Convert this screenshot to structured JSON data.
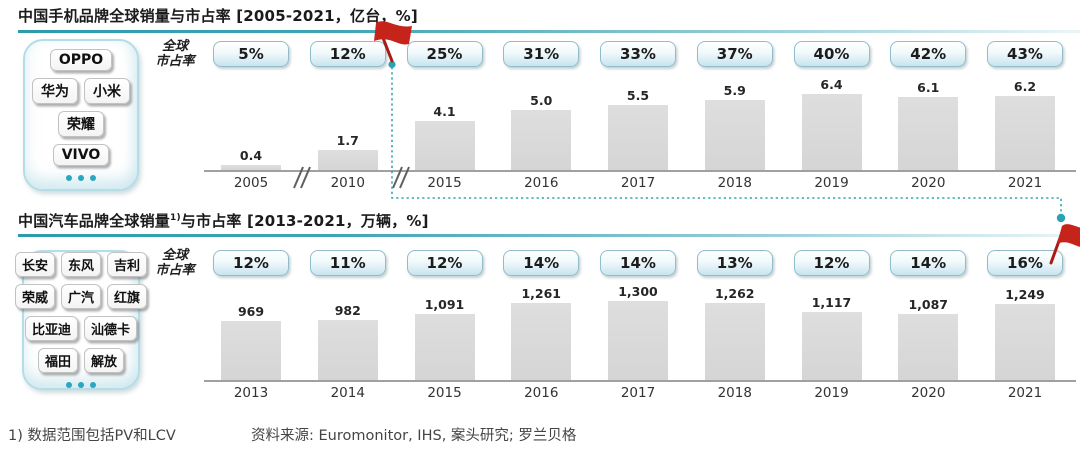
{
  "page": {
    "footnote": "1) 数据范围包括PV和LCV",
    "source": "资料来源: Euromonitor, IHS, 案头研究; 罗兰贝格"
  },
  "sections": [
    {
      "title_pre": "中国手机品牌全球销量与市占率 [2005-2021，亿台，%]",
      "title_sup": "",
      "title_post": "",
      "share_label_line1": "全球",
      "share_label_line2": "市占率"
    },
    {
      "title_pre": "中国汽车品牌全球销量",
      "title_sup": "1)",
      "title_post": "与市占率 [2013-2021，万辆，%]",
      "share_label_line1": "全球",
      "share_label_line2": "市占率"
    }
  ],
  "brand_panels": [
    {
      "rows": [
        [
          "OPPO"
        ],
        [
          "华为",
          "小米"
        ],
        [
          "荣耀"
        ],
        [
          "VIVO"
        ]
      ]
    },
    {
      "rows": [
        [
          "长安",
          "东风",
          "吉利"
        ],
        [
          "荣威",
          "广汽",
          "红旗"
        ],
        [
          "比亚迪",
          "汕德卡"
        ],
        [
          "福田",
          "解放"
        ]
      ]
    }
  ],
  "chart_data": [
    {
      "type": "bar",
      "title": "中国手机品牌全球销量与市占率 [2005-2021，亿台，%]",
      "categories": [
        "2005",
        "2010",
        "2015",
        "2016",
        "2017",
        "2018",
        "2019",
        "2020",
        "2021"
      ],
      "series": [
        {
          "name": "全球销量（亿台）",
          "values": [
            0.4,
            1.7,
            4.1,
            5.0,
            5.5,
            5.9,
            6.4,
            6.1,
            6.2
          ],
          "labels": [
            "0.4",
            "1.7",
            "4.1",
            "5.0",
            "5.5",
            "5.9",
            "6.4",
            "6.1",
            "6.2"
          ]
        },
        {
          "name": "全球市占率（%）",
          "values": [
            5,
            12,
            25,
            31,
            33,
            37,
            40,
            42,
            43
          ],
          "labels": [
            "5%",
            "12%",
            "25%",
            "31%",
            "33%",
            "37%",
            "40%",
            "42%",
            "43%"
          ]
        }
      ],
      "ylim": [
        0,
        6.5
      ],
      "xlabel": "",
      "ylabel": "",
      "grid": false,
      "legend": "none",
      "axis_breaks": [
        [
          "2005",
          "2010"
        ],
        [
          "2010",
          "2015"
        ]
      ],
      "annotation": "红旗标记位于2010与2015之间，虚线连接至下图2021"
    },
    {
      "type": "bar",
      "title": "中国汽车品牌全球销量1)与市占率 [2013-2021，万辆，%]",
      "categories": [
        "2013",
        "2014",
        "2015",
        "2016",
        "2017",
        "2018",
        "2019",
        "2020",
        "2021"
      ],
      "series": [
        {
          "name": "全球销量（万辆）",
          "values": [
            969,
            982,
            1091,
            1261,
            1300,
            1262,
            1117,
            1087,
            1249
          ],
          "labels": [
            "969",
            "982",
            "1,091",
            "1,261",
            "1,300",
            "1,262",
            "1,117",
            "1,087",
            "1,249"
          ]
        },
        {
          "name": "全球市占率（%）",
          "values": [
            12,
            11,
            12,
            14,
            14,
            13,
            12,
            14,
            16
          ],
          "labels": [
            "12%",
            "11%",
            "12%",
            "14%",
            "14%",
            "13%",
            "12%",
            "14%",
            "16%"
          ]
        }
      ],
      "ylim": [
        0,
        1400
      ],
      "xlabel": "",
      "ylabel": "",
      "grid": false,
      "legend": "none",
      "axis_breaks": [],
      "annotation": "红旗标记位于2021（16%）旁"
    }
  ],
  "colors": {
    "accent_teal": "#2d9dae",
    "badge_border": "#92bcca",
    "badge_fill_bottom": "#c7e4ef",
    "bar_fill": "#d9d9d9",
    "flag_red": "#c6231b",
    "connector_teal": "#35a3b5"
  }
}
